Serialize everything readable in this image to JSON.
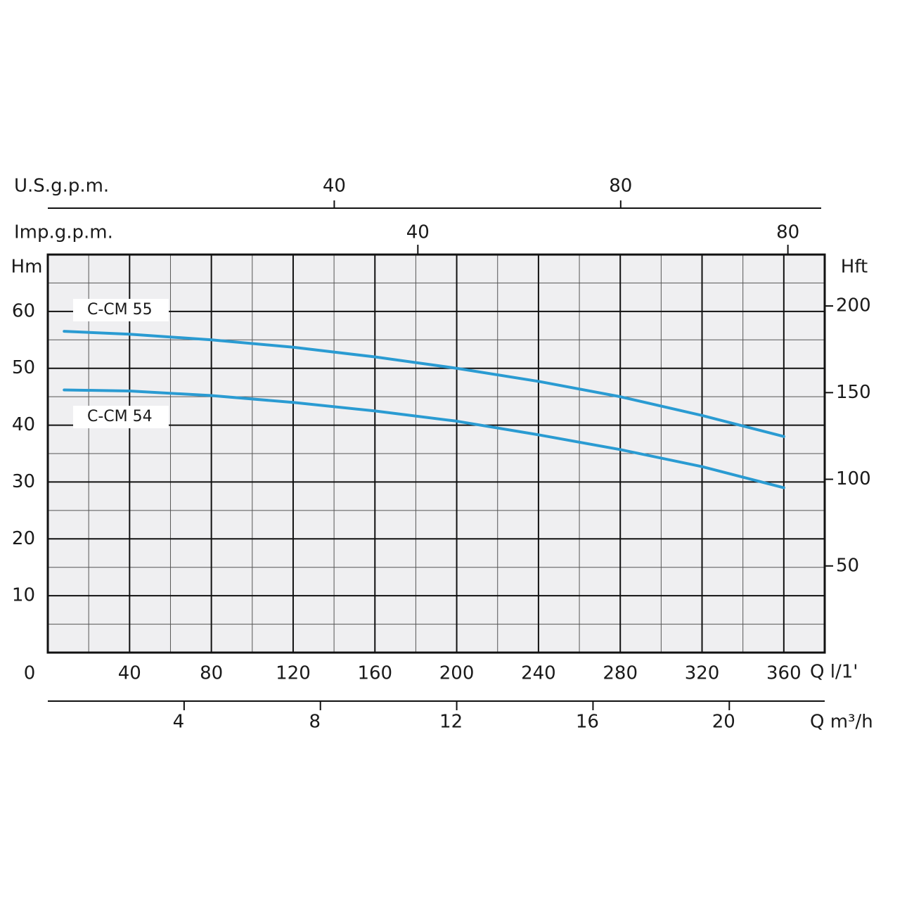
{
  "chart_data": {
    "type": "line",
    "x_label": "Q l/1'",
    "y_label": "Hm",
    "y2_label": "Hft",
    "x": [
      8,
      40,
      80,
      120,
      160,
      200,
      240,
      280,
      320,
      360
    ],
    "series": [
      {
        "name": "C-CM 55",
        "color": "#2a9bd2",
        "values": [
          56.5,
          56,
          55,
          53.7,
          52,
          50,
          47.7,
          45,
          41.7,
          38
        ]
      },
      {
        "name": "C-CM 54",
        "color": "#2a9bd2",
        "values": [
          46.2,
          46,
          45.2,
          44,
          42.5,
          40.7,
          38.3,
          35.7,
          32.7,
          29
        ]
      }
    ],
    "xlim": [
      0,
      380
    ],
    "xticks": [
      0,
      40,
      80,
      120,
      160,
      200,
      240,
      280,
      320,
      360
    ],
    "ylim": [
      0,
      70
    ],
    "yticks": [
      10,
      20,
      30,
      40,
      50,
      60
    ],
    "y2lim": [
      0,
      229.66
    ],
    "y2ticks": [
      50,
      100,
      150,
      200
    ],
    "grid": true,
    "top_axes": [
      {
        "label": "U.S.g.p.m.",
        "lim": [
          0,
          108
        ],
        "ticks": [
          40,
          80
        ]
      },
      {
        "label": "Imp.g.p.m.",
        "lim": [
          0,
          83.6
        ],
        "ticks": [
          40,
          80
        ]
      }
    ],
    "bottom_axis": {
      "label": "Q m³/h",
      "lim": [
        0,
        22.8
      ],
      "ticks": [
        4,
        8,
        12,
        16,
        20
      ]
    }
  }
}
